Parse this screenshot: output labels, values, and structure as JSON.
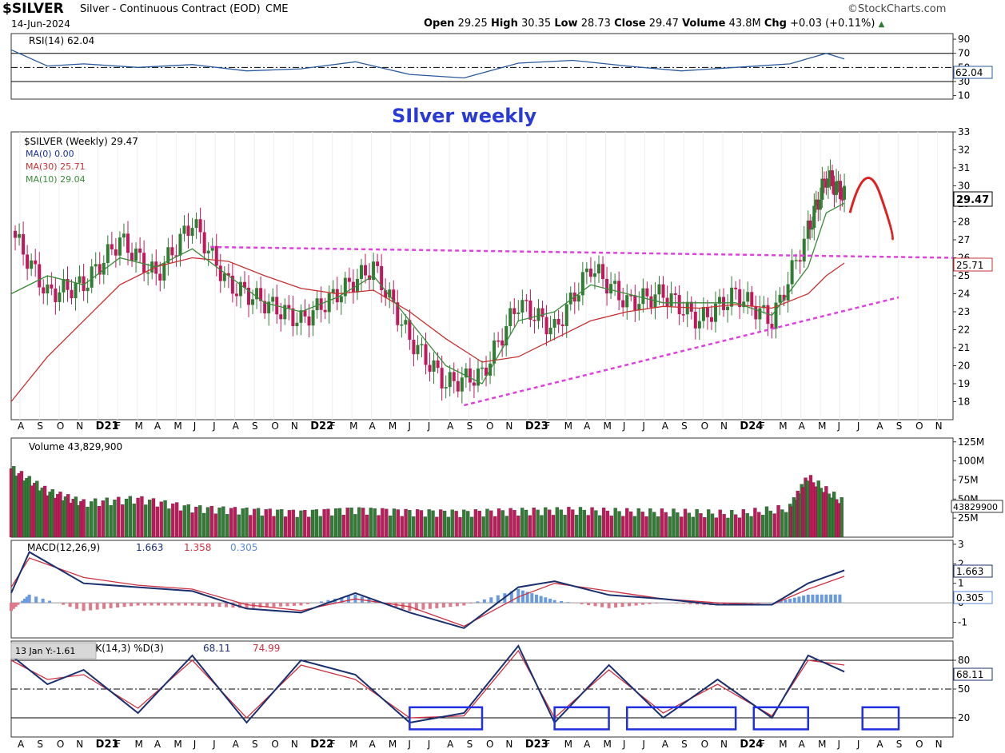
{
  "header": {
    "symbol": "$SILVER",
    "description": "Silver - Continuous Contract (EOD)",
    "exchange": "CME",
    "date": "14-Jun-2024",
    "brand": "©StockCharts.com",
    "open_label": "Open",
    "open": "29.25",
    "high_label": "High",
    "high": "30.35",
    "low_label": "Low",
    "low": "28.73",
    "close_label": "Close",
    "close": "29.47",
    "volume_label": "Volume",
    "volume": "43.8M",
    "chg_label": "Chg",
    "chg": "+0.03 (+0.11%)"
  },
  "annotation": "SIlver weekly",
  "panels": {
    "rsi": {
      "label": "RSI(14) 62.04",
      "value_tag": "62.04",
      "ticks": [
        90,
        70,
        50,
        30,
        10
      ]
    },
    "price": {
      "legend": [
        "$SILVER (Weekly) 29.47",
        "MA(0) 0.00",
        "MA(30) 25.71",
        "MA(10) 29.04"
      ],
      "price_tag": "29.47",
      "ma30_tag": "25.71",
      "ticks": [
        33,
        32,
        31,
        30,
        29,
        28,
        27,
        26,
        25,
        24,
        23,
        22,
        21,
        20,
        19,
        18
      ]
    },
    "volume": {
      "label": "Volume 43,829,900",
      "value_tag": "43829900",
      "ticks": [
        "125M",
        "100M",
        "75M",
        "50M",
        "25M"
      ]
    },
    "macd": {
      "label_prefix": "MACD(12,26,9)",
      "v1": "1.663",
      "v2": "1.358",
      "v3": "0.305",
      "tag1": "1.663",
      "tag2": "0.305",
      "ticks": [
        "3",
        "2",
        "1",
        "0",
        "-1"
      ]
    },
    "stoch": {
      "tooltip": "13 Jan Y:-1.61",
      "label_prefix": "%K(14,3) %D(3)",
      "k": "68.11",
      "d": "74.99",
      "k_tag": "68.11",
      "ticks": [
        "80",
        "50",
        "20"
      ]
    }
  },
  "months": [
    "A",
    "S",
    "O",
    "N",
    "D21",
    "F",
    "M",
    "A",
    "M",
    "J",
    "J",
    "A",
    "S",
    "O",
    "N",
    "D22",
    "F",
    "M",
    "A",
    "M",
    "J",
    "J",
    "A",
    "S",
    "O",
    "N",
    "D23",
    "F",
    "M",
    "A",
    "M",
    "J",
    "J",
    "A",
    "S",
    "O",
    "N",
    "D24",
    "F",
    "M",
    "A",
    "M",
    "J",
    "J",
    "A",
    "S",
    "O",
    "N"
  ],
  "colors": {
    "up": "#2e7d32",
    "down": "#c2185b",
    "ma10": "#3a8a3a",
    "ma30": "#c83030",
    "magenta": "#e040e0",
    "rsi": "#2a5a9e",
    "macd": "#1a2f6e",
    "signal": "#d03040",
    "box": "#2030e0",
    "arrow": "#e02020"
  },
  "chart_data": [
    {
      "type": "line",
      "title": "RSI(14) 62.04",
      "x": [
        "2020-08",
        "2020-10",
        "2020-12",
        "2021-03",
        "2021-06",
        "2021-09",
        "2021-12",
        "2022-03",
        "2022-06",
        "2022-09",
        "2022-12",
        "2023-03",
        "2023-06",
        "2023-09",
        "2023-12",
        "2024-03",
        "2024-05",
        "2024-06"
      ],
      "series": [
        {
          "values": [
            75,
            52,
            55,
            50,
            54,
            45,
            48,
            58,
            40,
            35,
            56,
            60,
            52,
            45,
            50,
            55,
            70,
            62.04
          ]
        }
      ],
      "ylim": [
        0,
        100
      ]
    },
    {
      "type": "line",
      "title": "$SILVER (Weekly) 29.47",
      "x": [
        "2020-08",
        "2020-10",
        "2020-12",
        "2021-02",
        "2021-04",
        "2021-06",
        "2021-08",
        "2021-10",
        "2021-12",
        "2022-02",
        "2022-04",
        "2022-06",
        "2022-08",
        "2022-10",
        "2022-12",
        "2023-02",
        "2023-04",
        "2023-06",
        "2023-08",
        "2023-10",
        "2023-12",
        "2024-02",
        "2024-04",
        "2024-05",
        "2024-06"
      ],
      "series": [
        {
          "name": "$SILVER (Weekly) 29.47",
          "values": [
            27.5,
            24.0,
            24.5,
            27.0,
            25.0,
            28.0,
            24.5,
            23.5,
            22.5,
            24.0,
            25.5,
            21.5,
            19.0,
            19.5,
            23.5,
            22.0,
            25.5,
            23.5,
            24.0,
            22.5,
            24.0,
            22.5,
            27.5,
            30.5,
            29.47
          ]
        },
        {
          "name": "MA(30) 25.71",
          "values": [
            18.0,
            20.5,
            22.5,
            24.5,
            25.5,
            26.0,
            25.8,
            25.0,
            24.3,
            24.0,
            24.2,
            23.0,
            21.5,
            20.2,
            20.5,
            21.5,
            22.5,
            23.0,
            23.3,
            23.2,
            23.4,
            23.2,
            24.0,
            25.0,
            25.71
          ]
        },
        {
          "name": "MA(10) 29.04",
          "values": [
            24.0,
            25.0,
            24.5,
            26.0,
            25.5,
            26.5,
            25.0,
            23.5,
            23.0,
            23.8,
            25.0,
            22.5,
            20.0,
            19.0,
            22.5,
            23.0,
            24.5,
            24.0,
            23.5,
            23.5,
            23.5,
            22.8,
            25.5,
            28.5,
            29.04
          ]
        }
      ],
      "ylim": [
        17,
        33
      ]
    },
    {
      "type": "bar",
      "title": "Volume 43,829,900",
      "x": [
        "2020-08",
        "2020-10",
        "2020-12",
        "2021-03",
        "2021-06",
        "2021-09",
        "2021-12",
        "2022-03",
        "2022-06",
        "2022-09",
        "2022-12",
        "2023-03",
        "2023-06",
        "2023-09",
        "2023-12",
        "2024-03",
        "2024-04",
        "2024-06"
      ],
      "values": [
        90,
        60,
        45,
        50,
        38,
        35,
        32,
        36,
        33,
        32,
        34,
        35,
        33,
        32,
        30,
        38,
        78,
        43.83
      ],
      "ylim": [
        0,
        130
      ]
    },
    {
      "type": "line",
      "title": "MACD(12,26,9) 1.663, 1.358, 0.305",
      "x": [
        "2020-08",
        "2020-09",
        "2020-12",
        "2021-03",
        "2021-06",
        "2021-09",
        "2021-12",
        "2022-03",
        "2022-06",
        "2022-09",
        "2022-12",
        "2023-02",
        "2023-05",
        "2023-08",
        "2023-11",
        "2024-02",
        "2024-04",
        "2024-06"
      ],
      "series": [
        {
          "values": [
            0.5,
            2.6,
            1.0,
            0.8,
            0.6,
            -0.3,
            -0.5,
            0.5,
            -0.5,
            -1.3,
            0.8,
            1.1,
            0.4,
            0.2,
            -0.1,
            -0.1,
            1.0,
            1.663
          ]
        },
        {
          "values": [
            0.8,
            2.3,
            1.3,
            0.9,
            0.7,
            -0.1,
            -0.4,
            0.2,
            -0.2,
            -1.2,
            0.3,
            1.0,
            0.6,
            0.2,
            0.0,
            -0.1,
            0.7,
            1.358
          ]
        }
      ],
      "ylim": [
        -1.8,
        3.2
      ]
    },
    {
      "type": "line",
      "title": "%K(14,3) %D(3) 68.11, 74.99",
      "x": [
        "2020-08",
        "2020-10",
        "2020-12",
        "2021-03",
        "2021-06",
        "2021-09",
        "2021-12",
        "2022-03",
        "2022-06",
        "2022-09",
        "2022-12",
        "2023-02",
        "2023-05",
        "2023-08",
        "2023-11",
        "2024-02",
        "2024-04",
        "2024-06"
      ],
      "series": [
        {
          "values": [
            85,
            55,
            70,
            25,
            85,
            15,
            80,
            65,
            15,
            25,
            95,
            15,
            75,
            20,
            60,
            20,
            85,
            68.11
          ]
        },
        {
          "values": [
            80,
            60,
            65,
            30,
            80,
            20,
            75,
            60,
            20,
            22,
            90,
            20,
            70,
            25,
            55,
            22,
            80,
            74.99
          ]
        }
      ],
      "ylim": [
        0,
        100
      ]
    }
  ]
}
